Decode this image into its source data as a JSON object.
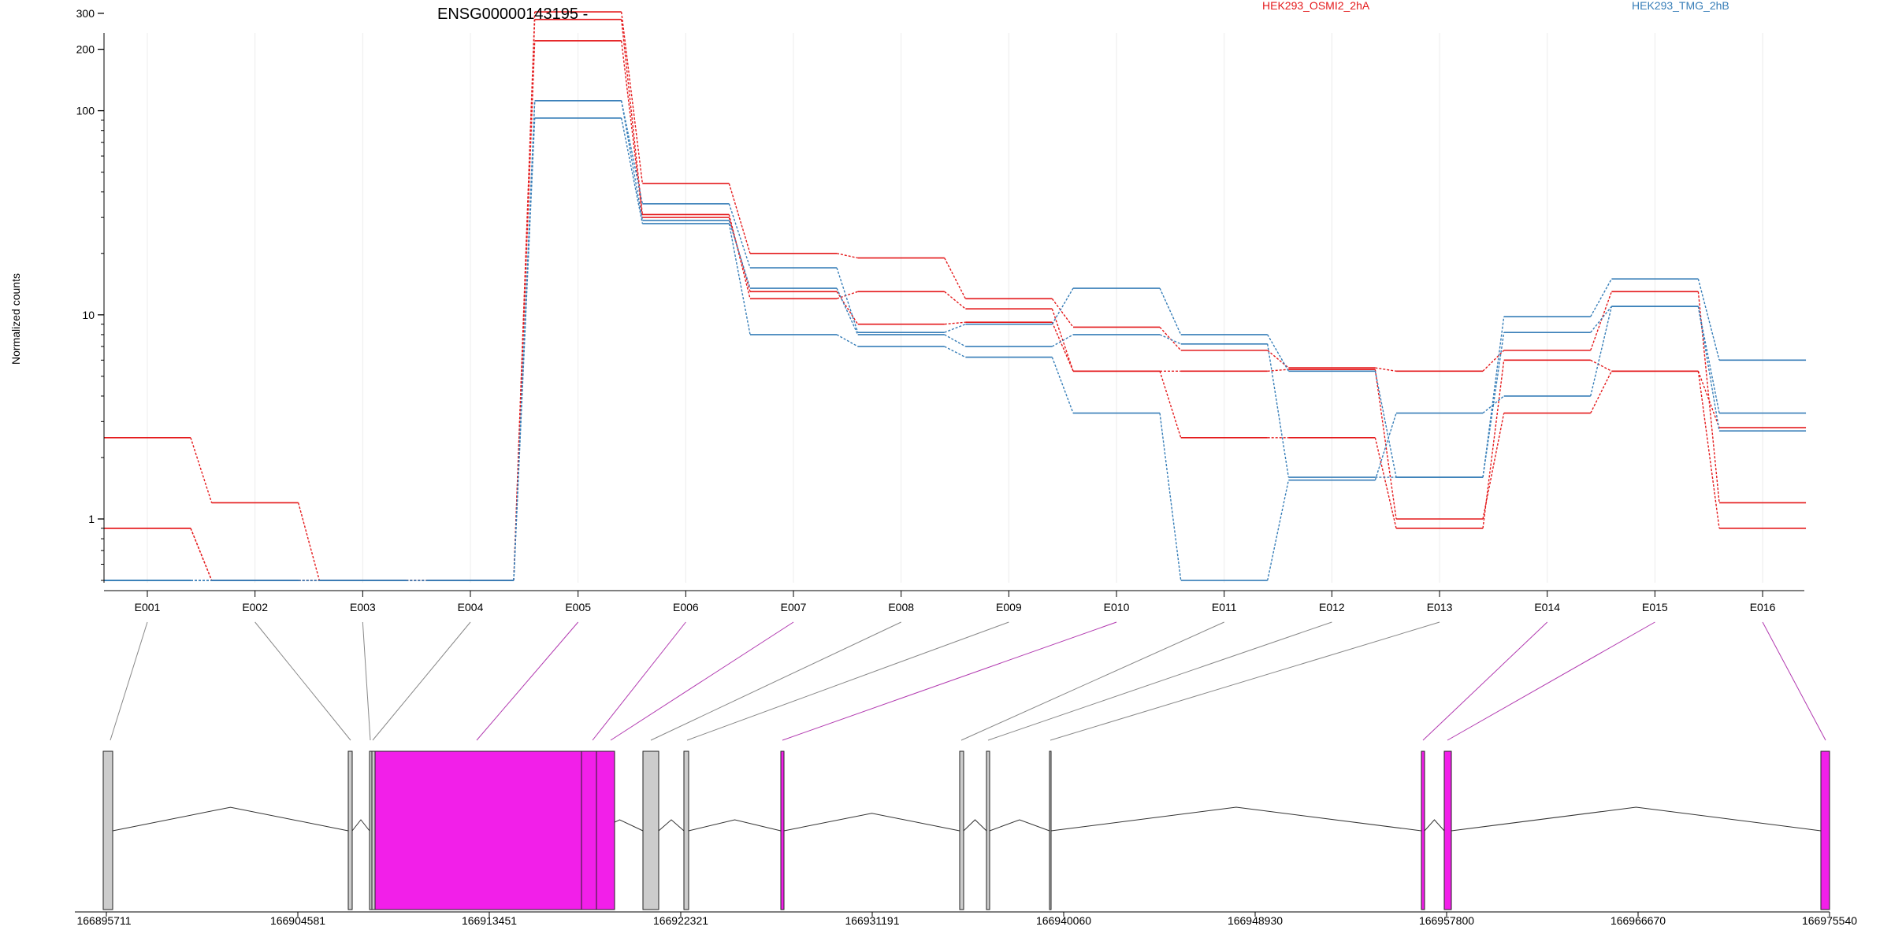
{
  "chart_data": {
    "type": "line",
    "title": "ENSG00000143195 -",
    "ylabel": "Normalized counts",
    "yscale": "log",
    "ylim": [
      0.5,
      420
    ],
    "yticks": [
      1,
      10,
      100,
      200,
      300
    ],
    "ytick_labels": [
      "1",
      "10",
      "100",
      "200",
      "300"
    ],
    "grid": "vertical",
    "legend_placement": "top",
    "categories": [
      "E001",
      "E002",
      "E003",
      "E004",
      "E005",
      "E006",
      "E007",
      "E008",
      "E009",
      "E010",
      "E011",
      "E012",
      "E013",
      "E014",
      "E015",
      "E016"
    ],
    "groups": [
      {
        "label": "HEK293_OSMI2_2hA",
        "color": "#e41a1c"
      },
      {
        "label": "HEK293_TMG_2hB",
        "color": "#377eb8"
      }
    ],
    "series": [
      {
        "group": 0,
        "values": [
          2.5,
          1.2,
          0.5,
          0.5,
          305,
          44,
          20,
          19,
          12,
          8.7,
          6.7,
          5.5,
          5.3,
          6.7,
          13,
          1.2
        ]
      },
      {
        "group": 0,
        "values": [
          0.9,
          0.5,
          0.5,
          0.5,
          280,
          31,
          12,
          13,
          10.7,
          5.3,
          5.3,
          5.4,
          1.0,
          3.3,
          5.3,
          0.9
        ]
      },
      {
        "group": 0,
        "values": [
          0.9,
          0.5,
          0.5,
          0.5,
          220,
          30,
          13,
          9,
          9.2,
          5.3,
          2.5,
          2.5,
          0.9,
          6,
          5.3,
          2.8
        ]
      },
      {
        "group": 1,
        "values": [
          0.5,
          0.5,
          0.5,
          0.5,
          112,
          35,
          17,
          8.2,
          9,
          13.5,
          8,
          5.3,
          1.6,
          9.8,
          15,
          6
        ]
      },
      {
        "group": 1,
        "values": [
          0.5,
          0.5,
          0.5,
          0.5,
          112,
          29,
          13.5,
          8,
          7,
          8,
          7.2,
          1.6,
          1.6,
          8.2,
          11,
          3.3
        ]
      },
      {
        "group": 1,
        "values": [
          0.5,
          0.5,
          0.5,
          0.5,
          92,
          28,
          8,
          7,
          6.2,
          3.3,
          0.5,
          1.55,
          3.3,
          4,
          11,
          2.7
        ]
      }
    ],
    "gene_model": {
      "axis_ticks": [
        "166895711",
        "166904581",
        "166913451",
        "166922321",
        "166931191",
        "166940060",
        "166948930",
        "166957800",
        "166966670",
        "166975540"
      ],
      "exon_fill_significant": "#f21fe9",
      "exon_fill_default": "#cccccc",
      "exons": [
        {
          "id": "E001",
          "highlighted": false
        },
        {
          "id": "E002",
          "highlighted": false
        },
        {
          "id": "E003",
          "highlighted": false
        },
        {
          "id": "E004",
          "highlighted": false
        },
        {
          "id": "E005",
          "highlighted": true
        },
        {
          "id": "E006",
          "highlighted": true
        },
        {
          "id": "E007",
          "highlighted": true
        },
        {
          "id": "E008",
          "highlighted": false
        },
        {
          "id": "E009",
          "highlighted": false
        },
        {
          "id": "E010",
          "highlighted": true
        },
        {
          "id": "E011",
          "highlighted": false
        },
        {
          "id": "E012",
          "highlighted": false
        },
        {
          "id": "E013",
          "highlighted": false
        },
        {
          "id": "E014",
          "highlighted": true
        },
        {
          "id": "E015",
          "highlighted": true
        },
        {
          "id": "E016",
          "highlighted": true
        }
      ]
    }
  }
}
